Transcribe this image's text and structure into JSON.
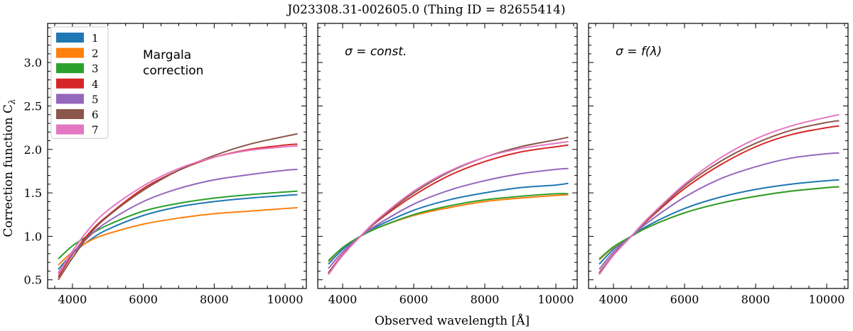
{
  "figure": {
    "title": "J023308.31-002605.0   (Thing ID = 82655414)",
    "xlabel": "Observed wavelength [Å]",
    "ylabel": "Correction function C",
    "ylabel_subscript": "λ"
  },
  "chart_data": [
    {
      "type": "line",
      "panel": 1,
      "annotation": [
        "Margala",
        "correction"
      ],
      "xlim": [
        3300,
        10600
      ],
      "ylim": [
        0.4,
        3.45
      ],
      "xticks": [
        4000,
        6000,
        8000,
        10000
      ],
      "yticks": [
        0.5,
        1.0,
        1.5,
        2.0,
        2.5,
        3.0
      ],
      "ytick_labels": [
        "0.5",
        "1.0",
        "1.5",
        "2.0",
        "2.5",
        "3.0"
      ],
      "grid": false,
      "legend": "top-left",
      "x": [
        3600,
        4000,
        4500,
        5000,
        6000,
        7000,
        8000,
        9000,
        10000,
        10350
      ],
      "series": [
        {
          "name": "1",
          "color": "#1f77b4",
          "values": [
            0.62,
            0.8,
            0.96,
            1.08,
            1.24,
            1.34,
            1.4,
            1.44,
            1.47,
            1.48
          ]
        },
        {
          "name": "2",
          "color": "#ff7f0e",
          "values": [
            0.67,
            0.82,
            0.95,
            1.03,
            1.14,
            1.21,
            1.26,
            1.29,
            1.32,
            1.33
          ]
        },
        {
          "name": "3",
          "color": "#2ca02c",
          "values": [
            0.74,
            0.89,
            1.02,
            1.13,
            1.29,
            1.38,
            1.44,
            1.48,
            1.51,
            1.52
          ]
        },
        {
          "name": "4",
          "color": "#d62728",
          "values": [
            0.53,
            0.79,
            1.05,
            1.24,
            1.55,
            1.76,
            1.91,
            2.0,
            2.05,
            2.06
          ]
        },
        {
          "name": "5",
          "color": "#9467bd",
          "values": [
            0.58,
            0.8,
            1.01,
            1.17,
            1.4,
            1.55,
            1.65,
            1.71,
            1.76,
            1.77
          ]
        },
        {
          "name": "6",
          "color": "#8c564b",
          "values": [
            0.5,
            0.75,
            1.03,
            1.23,
            1.53,
            1.76,
            1.93,
            2.06,
            2.15,
            2.18
          ]
        },
        {
          "name": "7",
          "color": "#e377c2",
          "values": [
            0.56,
            0.83,
            1.1,
            1.3,
            1.58,
            1.78,
            1.91,
            1.99,
            2.03,
            2.04
          ]
        }
      ]
    },
    {
      "type": "line",
      "panel": 2,
      "annotation": [
        "σ = const."
      ],
      "xlim": [
        3300,
        10600
      ],
      "ylim": [
        0.4,
        3.45
      ],
      "xticks": [
        4000,
        6000,
        8000,
        10000
      ],
      "yticks": [
        0.5,
        1.0,
        1.5,
        2.0,
        2.5,
        3.0
      ],
      "grid": false,
      "x": [
        3600,
        4000,
        4500,
        5000,
        6000,
        7000,
        8000,
        9000,
        10000,
        10350
      ],
      "series": [
        {
          "name": "1",
          "color": "#1f77b4",
          "values": [
            0.68,
            0.85,
            1.0,
            1.12,
            1.3,
            1.42,
            1.5,
            1.56,
            1.59,
            1.61
          ]
        },
        {
          "name": "2",
          "color": "#ff7f0e",
          "values": [
            0.71,
            0.87,
            1.0,
            1.1,
            1.24,
            1.33,
            1.4,
            1.44,
            1.47,
            1.48
          ]
        },
        {
          "name": "3",
          "color": "#2ca02c",
          "values": [
            0.72,
            0.87,
            1.0,
            1.1,
            1.25,
            1.35,
            1.42,
            1.46,
            1.49,
            1.49
          ]
        },
        {
          "name": "4",
          "color": "#d62728",
          "values": [
            0.58,
            0.79,
            1.0,
            1.18,
            1.47,
            1.7,
            1.86,
            1.97,
            2.03,
            2.05
          ]
        },
        {
          "name": "5",
          "color": "#9467bd",
          "values": [
            0.63,
            0.82,
            1.0,
            1.14,
            1.37,
            1.53,
            1.64,
            1.72,
            1.77,
            1.78
          ]
        },
        {
          "name": "6",
          "color": "#8c564b",
          "values": [
            0.57,
            0.78,
            1.0,
            1.19,
            1.5,
            1.74,
            1.91,
            2.03,
            2.11,
            2.14
          ]
        },
        {
          "name": "7",
          "color": "#e377c2",
          "values": [
            0.56,
            0.78,
            1.0,
            1.2,
            1.52,
            1.75,
            1.91,
            2.01,
            2.07,
            2.09
          ]
        }
      ]
    },
    {
      "type": "line",
      "panel": 3,
      "annotation": [
        "σ = f(λ)"
      ],
      "xlim": [
        3300,
        10600
      ],
      "ylim": [
        0.4,
        3.45
      ],
      "xticks": [
        4000,
        6000,
        8000,
        10000
      ],
      "yticks": [
        0.5,
        1.0,
        1.5,
        2.0,
        2.5,
        3.0
      ],
      "grid": false,
      "x": [
        3600,
        4000,
        4500,
        5000,
        6000,
        7000,
        8000,
        9000,
        10000,
        10350
      ],
      "series": [
        {
          "name": "1",
          "color": "#1f77b4",
          "values": [
            0.68,
            0.85,
            1.0,
            1.13,
            1.32,
            1.45,
            1.54,
            1.6,
            1.64,
            1.65
          ]
        },
        {
          "name": "2",
          "color": "#ff7f0e",
          "values": [
            0.73,
            0.87,
            1.0,
            1.11,
            1.27,
            1.38,
            1.46,
            1.52,
            1.56,
            1.57
          ]
        },
        {
          "name": "3",
          "color": "#2ca02c",
          "values": [
            0.74,
            0.88,
            1.0,
            1.11,
            1.27,
            1.38,
            1.46,
            1.52,
            1.56,
            1.57
          ]
        },
        {
          "name": "4",
          "color": "#d62728",
          "values": [
            0.58,
            0.79,
            1.0,
            1.2,
            1.55,
            1.82,
            2.03,
            2.17,
            2.25,
            2.27
          ]
        },
        {
          "name": "5",
          "color": "#9467bd",
          "values": [
            0.62,
            0.82,
            1.0,
            1.17,
            1.45,
            1.66,
            1.8,
            1.9,
            1.95,
            1.96
          ]
        },
        {
          "name": "6",
          "color": "#8c564b",
          "values": [
            0.57,
            0.79,
            1.0,
            1.21,
            1.58,
            1.86,
            2.07,
            2.22,
            2.31,
            2.33
          ]
        },
        {
          "name": "7",
          "color": "#e377c2",
          "values": [
            0.56,
            0.78,
            1.0,
            1.22,
            1.6,
            1.9,
            2.12,
            2.27,
            2.37,
            2.4
          ]
        }
      ]
    }
  ]
}
